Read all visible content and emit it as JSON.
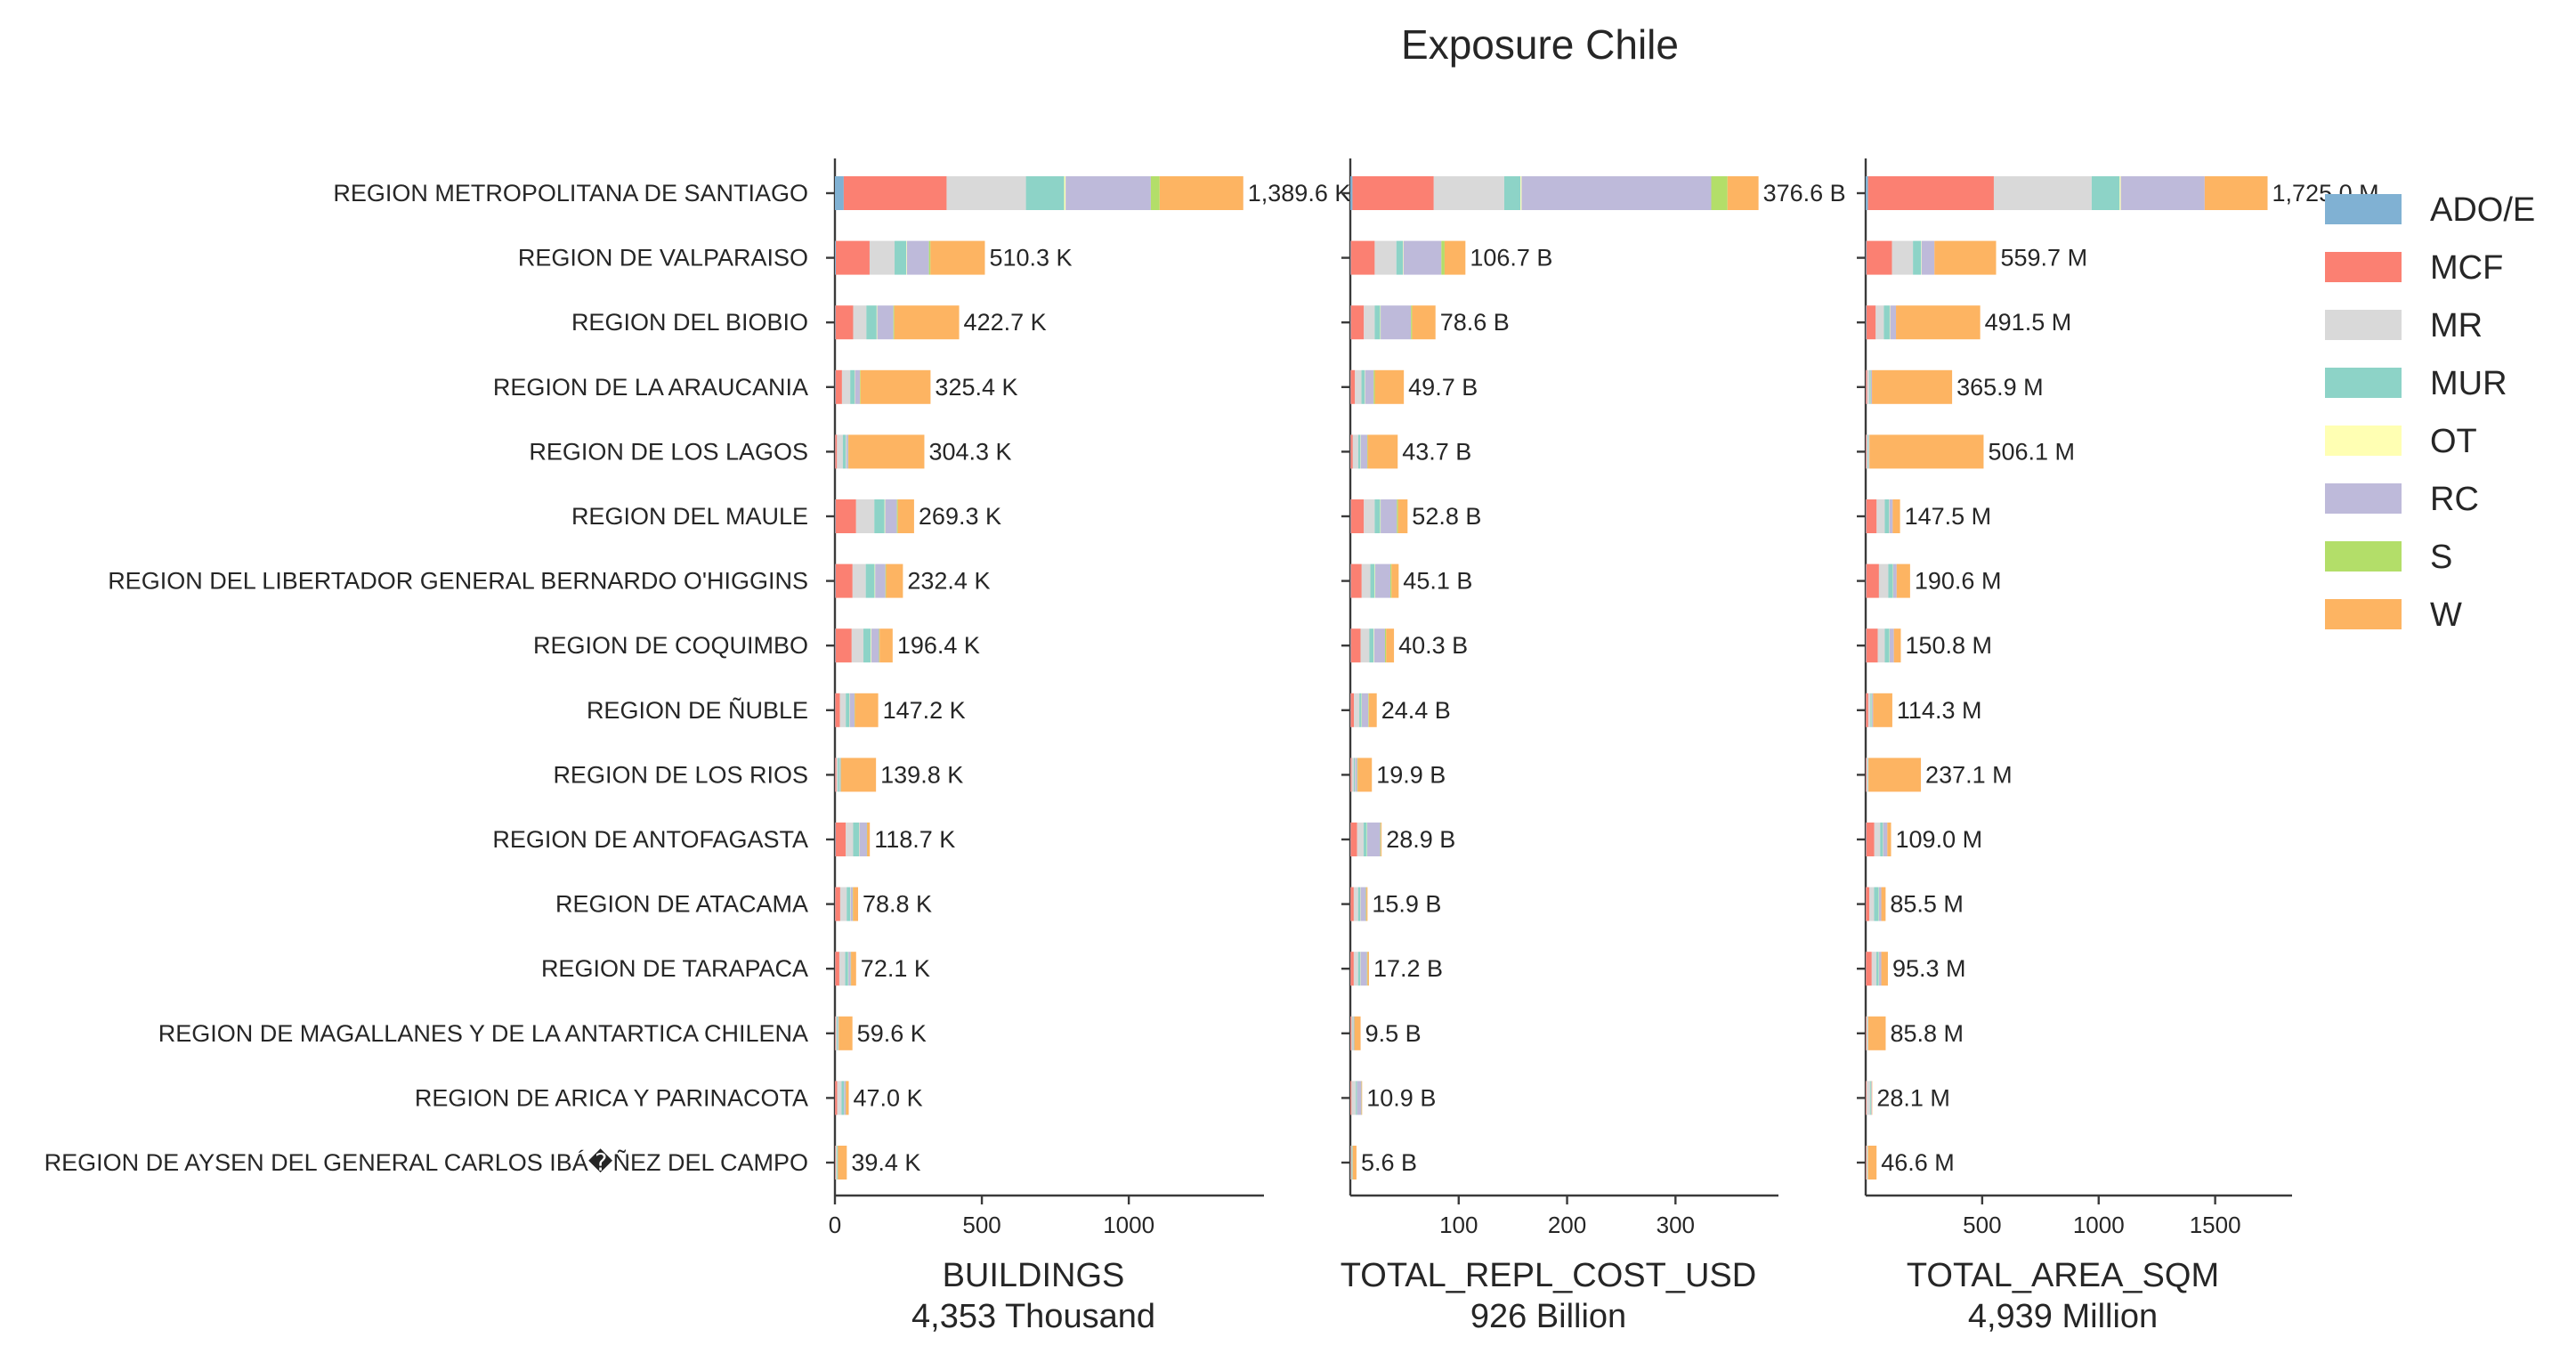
{
  "chart_data": {
    "type": "bar",
    "orientation": "horizontal",
    "stacked": true,
    "title": "Exposure Chile",
    "grid": false,
    "legend_placement": "right",
    "categories": [
      "REGION METROPOLITANA DE SANTIAGO",
      "REGION DE VALPARAISO",
      "REGION DEL BIOBIO",
      "REGION DE LA ARAUCANIA",
      "REGION DE LOS LAGOS",
      "REGION DEL MAULE",
      "REGION DEL LIBERTADOR GENERAL BERNARDO O'HIGGINS",
      "REGION DE COQUIMBO",
      "REGION DE ÑUBLE",
      "REGION DE LOS RIOS",
      "REGION DE ANTOFAGASTA",
      "REGION DE ATACAMA",
      "REGION DE TARAPACA",
      "REGION DE MAGALLANES Y DE LA ANTARTICA CHILENA",
      "REGION DE ARICA Y PARINACOTA",
      "REGION DE AYSEN DEL GENERAL CARLOS IBÁ�ÑEZ DEL CAMPO"
    ],
    "series_names": [
      "ADO/E",
      "MCF",
      "MR",
      "MUR",
      "OT",
      "RC",
      "S",
      "W"
    ],
    "series_colors": {
      "ADO/E": "#80b1d3",
      "MCF": "#fb8072",
      "MR": "#d9d9d9",
      "MUR": "#8dd3c7",
      "OT": "#ffffb3",
      "RC": "#bebada",
      "S": "#b3de69",
      "W": "#fdb462"
    },
    "panels": [
      {
        "xlabel": "BUILDINGS",
        "total_label": "4,353 Thousand",
        "xlim": [
          0,
          1460
        ],
        "xticks": [
          0,
          500,
          1000
        ],
        "values_by_series": {
          "ADO/E": [
            30,
            3,
            2,
            2,
            1,
            2,
            2,
            2,
            1,
            1,
            2,
            1,
            1,
            0.5,
            0.5,
            0.5
          ],
          "MCF": [
            350,
            115,
            60,
            22,
            6,
            70,
            58,
            55,
            16,
            4,
            35,
            17,
            14,
            2,
            7,
            2
          ],
          "MR": [
            270,
            85,
            45,
            28,
            20,
            62,
            45,
            40,
            20,
            5,
            25,
            22,
            20,
            4,
            15,
            3
          ],
          "MUR": [
            130,
            40,
            35,
            15,
            10,
            35,
            30,
            25,
            12,
            5,
            20,
            12,
            10,
            3,
            8,
            3
          ],
          "OT": [
            5,
            2,
            2,
            1,
            1,
            2,
            2,
            2,
            1,
            1,
            1,
            1,
            1,
            0.5,
            0.5,
            0.5
          ],
          "RC": [
            290,
            75,
            55,
            17,
            7,
            40,
            35,
            26,
            17,
            4,
            26,
            8,
            8,
            3,
            6,
            1
          ],
          "S": [
            30,
            5,
            3,
            2,
            1,
            3,
            2,
            2,
            1,
            1,
            1,
            1,
            1,
            0.5,
            0.5,
            0.5
          ],
          "W": [
            284.6,
            185.3,
            220.7,
            238.4,
            258.3,
            55.3,
            57.4,
            44.4,
            79.2,
            118.8,
            8.7,
            16.8,
            17.1,
            46.1,
            9.5,
            29.9
          ]
        },
        "totals_text": [
          "1,389.6 K",
          "510.3 K",
          "422.7 K",
          "325.4 K",
          "304.3 K",
          "269.3 K",
          "232.4 K",
          "196.4 K",
          "147.2 K",
          "139.8 K",
          "118.7 K",
          "78.8 K",
          "72.1 K",
          "59.6 K",
          "47.0 K",
          "39.4 K"
        ]
      },
      {
        "xlabel": "TOTAL_REPL_COST_USD",
        "total_label": "926 Billion",
        "xlim": [
          0,
          395
        ],
        "xticks": [
          100,
          200,
          300
        ],
        "values_by_series": {
          "ADO/E": [
            2,
            0.5,
            0.5,
            0.3,
            0.3,
            0.5,
            0.5,
            0.5,
            0.3,
            0.2,
            0.3,
            0.2,
            0.2,
            0.1,
            0.1,
            0.1
          ],
          "MCF": [
            75,
            22,
            12,
            4,
            2,
            12,
            10,
            9,
            3,
            1,
            6,
            3,
            3,
            1,
            1,
            0.5
          ],
          "MR": [
            65,
            20,
            10,
            6,
            5,
            10,
            8,
            8,
            5,
            2,
            6,
            4,
            4,
            1,
            4,
            0.5
          ],
          "MUR": [
            15,
            6,
            5,
            3,
            2,
            5,
            4,
            4,
            2,
            1,
            3,
            2,
            2,
            0.5,
            1,
            0.5
          ],
          "OT": [
            1,
            0.5,
            0.5,
            0.3,
            0.3,
            0.5,
            0.5,
            0.5,
            0.3,
            0.2,
            0.3,
            0.2,
            0.2,
            0.1,
            0.1,
            0.1
          ],
          "RC": [
            175,
            35,
            28,
            8,
            6,
            15,
            14,
            10,
            6,
            2,
            12,
            5,
            6,
            1,
            4,
            0.5
          ],
          "S": [
            15,
            3,
            1,
            1,
            0.5,
            1,
            1,
            1,
            0.5,
            0.5,
            0.5,
            0.5,
            0.5,
            0.2,
            0.2,
            0.2
          ],
          "W": [
            28.6,
            19.2,
            21.6,
            26.8,
            27.6,
            8.8,
            6.6,
            7.3,
            7.3,
            13,
            0.8,
            1,
            1.3,
            5.6,
            0.5,
            3.3
          ]
        },
        "totals_text": [
          "376.6 B",
          "106.7 B",
          "78.6 B",
          "49.7 B",
          "43.7 B",
          "52.8 B",
          "45.1 B",
          "40.3 B",
          "24.4 B",
          "19.9 B",
          "28.9 B",
          "15.9 B",
          "17.2 B",
          "9.5 B",
          "10.9 B",
          "5.6 B"
        ]
      },
      {
        "xlabel": "TOTAL_AREA_SQM",
        "total_label": "4,939 Million",
        "xlim": [
          0,
          1830
        ],
        "xticks": [
          500,
          1000,
          1500
        ],
        "values_by_series": {
          "ADO/E": [
            10,
            3,
            3,
            1,
            1,
            2,
            2,
            2,
            1,
            1,
            2,
            1,
            1,
            0.5,
            0.5,
            0.5
          ],
          "MCF": [
            540,
            110,
            40,
            5,
            3,
            45,
            55,
            50,
            10,
            3,
            35,
            15,
            25,
            3,
            3,
            3
          ],
          "MR": [
            420,
            90,
            35,
            10,
            5,
            35,
            40,
            30,
            10,
            3,
            25,
            20,
            20,
            3,
            15,
            3
          ],
          "MUR": [
            120,
            35,
            25,
            5,
            3,
            18,
            20,
            20,
            5,
            2,
            12,
            20,
            10,
            2,
            4,
            2
          ],
          "OT": [
            5,
            2,
            2,
            1,
            1,
            1,
            1,
            1,
            1,
            1,
            1,
            1,
            1,
            0.5,
            0.5,
            0.5
          ],
          "RC": [
            360,
            55,
            25,
            5,
            3,
            15,
            15,
            18,
            5,
            2,
            18,
            10,
            10,
            2,
            3,
            1
          ],
          "S": [
            0,
            0,
            0,
            0,
            0,
            0,
            0,
            0,
            0,
            0,
            0,
            0,
            0,
            0,
            0,
            0
          ],
          "W": [
            270,
            264.7,
            361.5,
            343.9,
            490.1,
            31.5,
            57.6,
            29.8,
            82.3,
            225.1,
            16,
            18.5,
            28.3,
            74.8,
            2.1,
            36.6
          ]
        },
        "totals_text": [
          "1,725.0 M",
          "559.7 M",
          "491.5 M",
          "365.9 M",
          "506.1 M",
          "147.5 M",
          "190.6 M",
          "150.8 M",
          "114.3 M",
          "237.1 M",
          "109.0 M",
          "85.5 M",
          "95.3 M",
          "85.8 M",
          "28.1 M",
          "46.6 M"
        ]
      }
    ]
  }
}
